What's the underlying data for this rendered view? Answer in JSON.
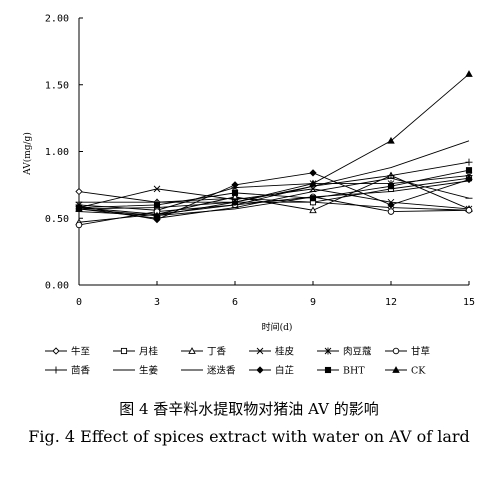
{
  "chart_data": {
    "type": "line",
    "title": "",
    "xlabel": "时间(d)",
    "ylabel": "AV(mg/g)",
    "x": [
      0,
      3,
      6,
      9,
      12,
      15
    ],
    "x_ticks": [
      "0",
      "3",
      "6",
      "9",
      "12",
      "15"
    ],
    "y_ticks": [
      "0.00",
      "0.50",
      "1.00",
      "1.50",
      "2.00"
    ],
    "xlim": [
      0,
      15
    ],
    "ylim": [
      0,
      2
    ],
    "grid": false,
    "legend_position": "bottom",
    "series": [
      {
        "name": "牛至",
        "marker": "diamond-open",
        "values": [
          0.7,
          0.62,
          0.65,
          0.62,
          0.58,
          0.56
        ]
      },
      {
        "name": "月桂",
        "marker": "square-open",
        "values": [
          0.57,
          0.58,
          0.62,
          0.62,
          0.72,
          0.8
        ]
      },
      {
        "name": "丁香",
        "marker": "triangle-open",
        "values": [
          0.47,
          0.53,
          0.66,
          0.56,
          0.82,
          0.57
        ]
      },
      {
        "name": "桂皮",
        "marker": "x",
        "values": [
          0.58,
          0.72,
          0.64,
          0.72,
          0.62,
          0.57
        ]
      },
      {
        "name": "肉豆蔻",
        "marker": "star",
        "values": [
          0.6,
          0.56,
          0.73,
          0.76,
          0.76,
          0.82
        ]
      },
      {
        "name": "甘草",
        "marker": "circle-open",
        "values": [
          0.45,
          0.55,
          0.6,
          0.66,
          0.55,
          0.56
        ]
      },
      {
        "name": "茴香",
        "marker": "plus",
        "values": [
          0.62,
          0.62,
          0.62,
          0.74,
          0.82,
          0.92
        ]
      },
      {
        "name": "生姜",
        "marker": "dash",
        "values": [
          0.57,
          0.5,
          0.58,
          0.7,
          0.8,
          0.65
        ]
      },
      {
        "name": "迷迭香",
        "marker": "none",
        "values": [
          0.55,
          0.52,
          0.57,
          0.66,
          0.7,
          0.78
        ]
      },
      {
        "name": "白芷",
        "marker": "diamond-filled",
        "values": [
          0.59,
          0.49,
          0.75,
          0.84,
          0.6,
          0.79
        ]
      },
      {
        "name": "BHT",
        "marker": "square-filled",
        "values": [
          0.58,
          0.6,
          0.69,
          0.65,
          0.74,
          0.86
        ]
      },
      {
        "name": "CK",
        "marker": "triangle-filled",
        "values": [
          0.57,
          0.52,
          0.62,
          0.76,
          1.08,
          1.58
        ]
      },
      {
        "name": "",
        "marker": "none",
        "values": [
          0.58,
          0.53,
          0.6,
          0.74,
          0.88,
          1.08
        ]
      }
    ]
  },
  "caption": {
    "cn": "图 4   香辛料水提取物对猪油 AV 的影响",
    "en": "Fig. 4   Effect of spices extract with water on AV of lard"
  }
}
